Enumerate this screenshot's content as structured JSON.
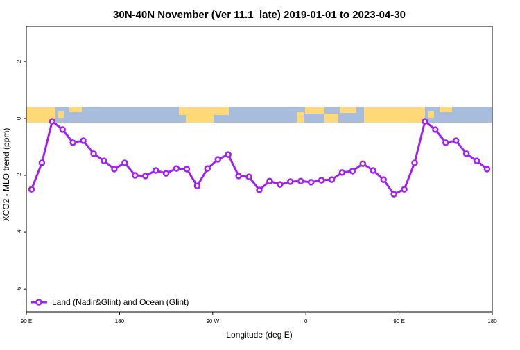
{
  "chart_data": {
    "type": "line",
    "title": "30N-40N November (Ver 11.1_late)   2019-01-01 to 2023-04-30",
    "x_label": "Longitude (deg E)",
    "y_label": "XCO2 - MLO trend (ppm)",
    "x": [
      95,
      105,
      115,
      125,
      135,
      145,
      155,
      165,
      175,
      185,
      195,
      205,
      215,
      225,
      235,
      245,
      255,
      265,
      275,
      285,
      295,
      305,
      315,
      325,
      335,
      345,
      355,
      365,
      375,
      385,
      395,
      405,
      415,
      425,
      435,
      445,
      455,
      465,
      475,
      485,
      495,
      505,
      515,
      525,
      535
    ],
    "series": [
      {
        "name": "Land (Nadir&Glint) and Ocean (Glint)",
        "color": "#a020f0",
        "values": [
          -2.49,
          -1.56,
          -0.1,
          -0.39,
          -0.85,
          -0.78,
          -1.24,
          -1.49,
          -1.78,
          -1.56,
          -2.0,
          -2.02,
          -1.83,
          -1.93,
          -1.76,
          -1.78,
          -2.37,
          -1.76,
          -1.44,
          -1.27,
          -2.02,
          -2.05,
          -2.51,
          -2.2,
          -2.32,
          -2.22,
          -2.2,
          -2.24,
          -2.17,
          -2.15,
          -1.9,
          -1.85,
          -1.59,
          -1.83,
          -2.15,
          -2.66,
          -2.49,
          -1.56,
          -0.1,
          -0.39,
          -0.85,
          -0.78,
          -1.24,
          -1.49,
          -1.78
        ]
      }
    ],
    "xlim": [
      90,
      540
    ],
    "ylim": [
      -6.8,
      3.24
    ],
    "xticks": [
      {
        "value": 90,
        "label": "90 E"
      },
      180,
      {
        "value": 270,
        "label": "90 W"
      },
      {
        "value": 360,
        "label": "0"
      },
      {
        "value": 450,
        "label": "90 E"
      },
      {
        "value": 540,
        "label": "180"
      }
    ],
    "yticks": [
      -6,
      -4,
      -2,
      0,
      2
    ],
    "legend": "bottom-left"
  }
}
